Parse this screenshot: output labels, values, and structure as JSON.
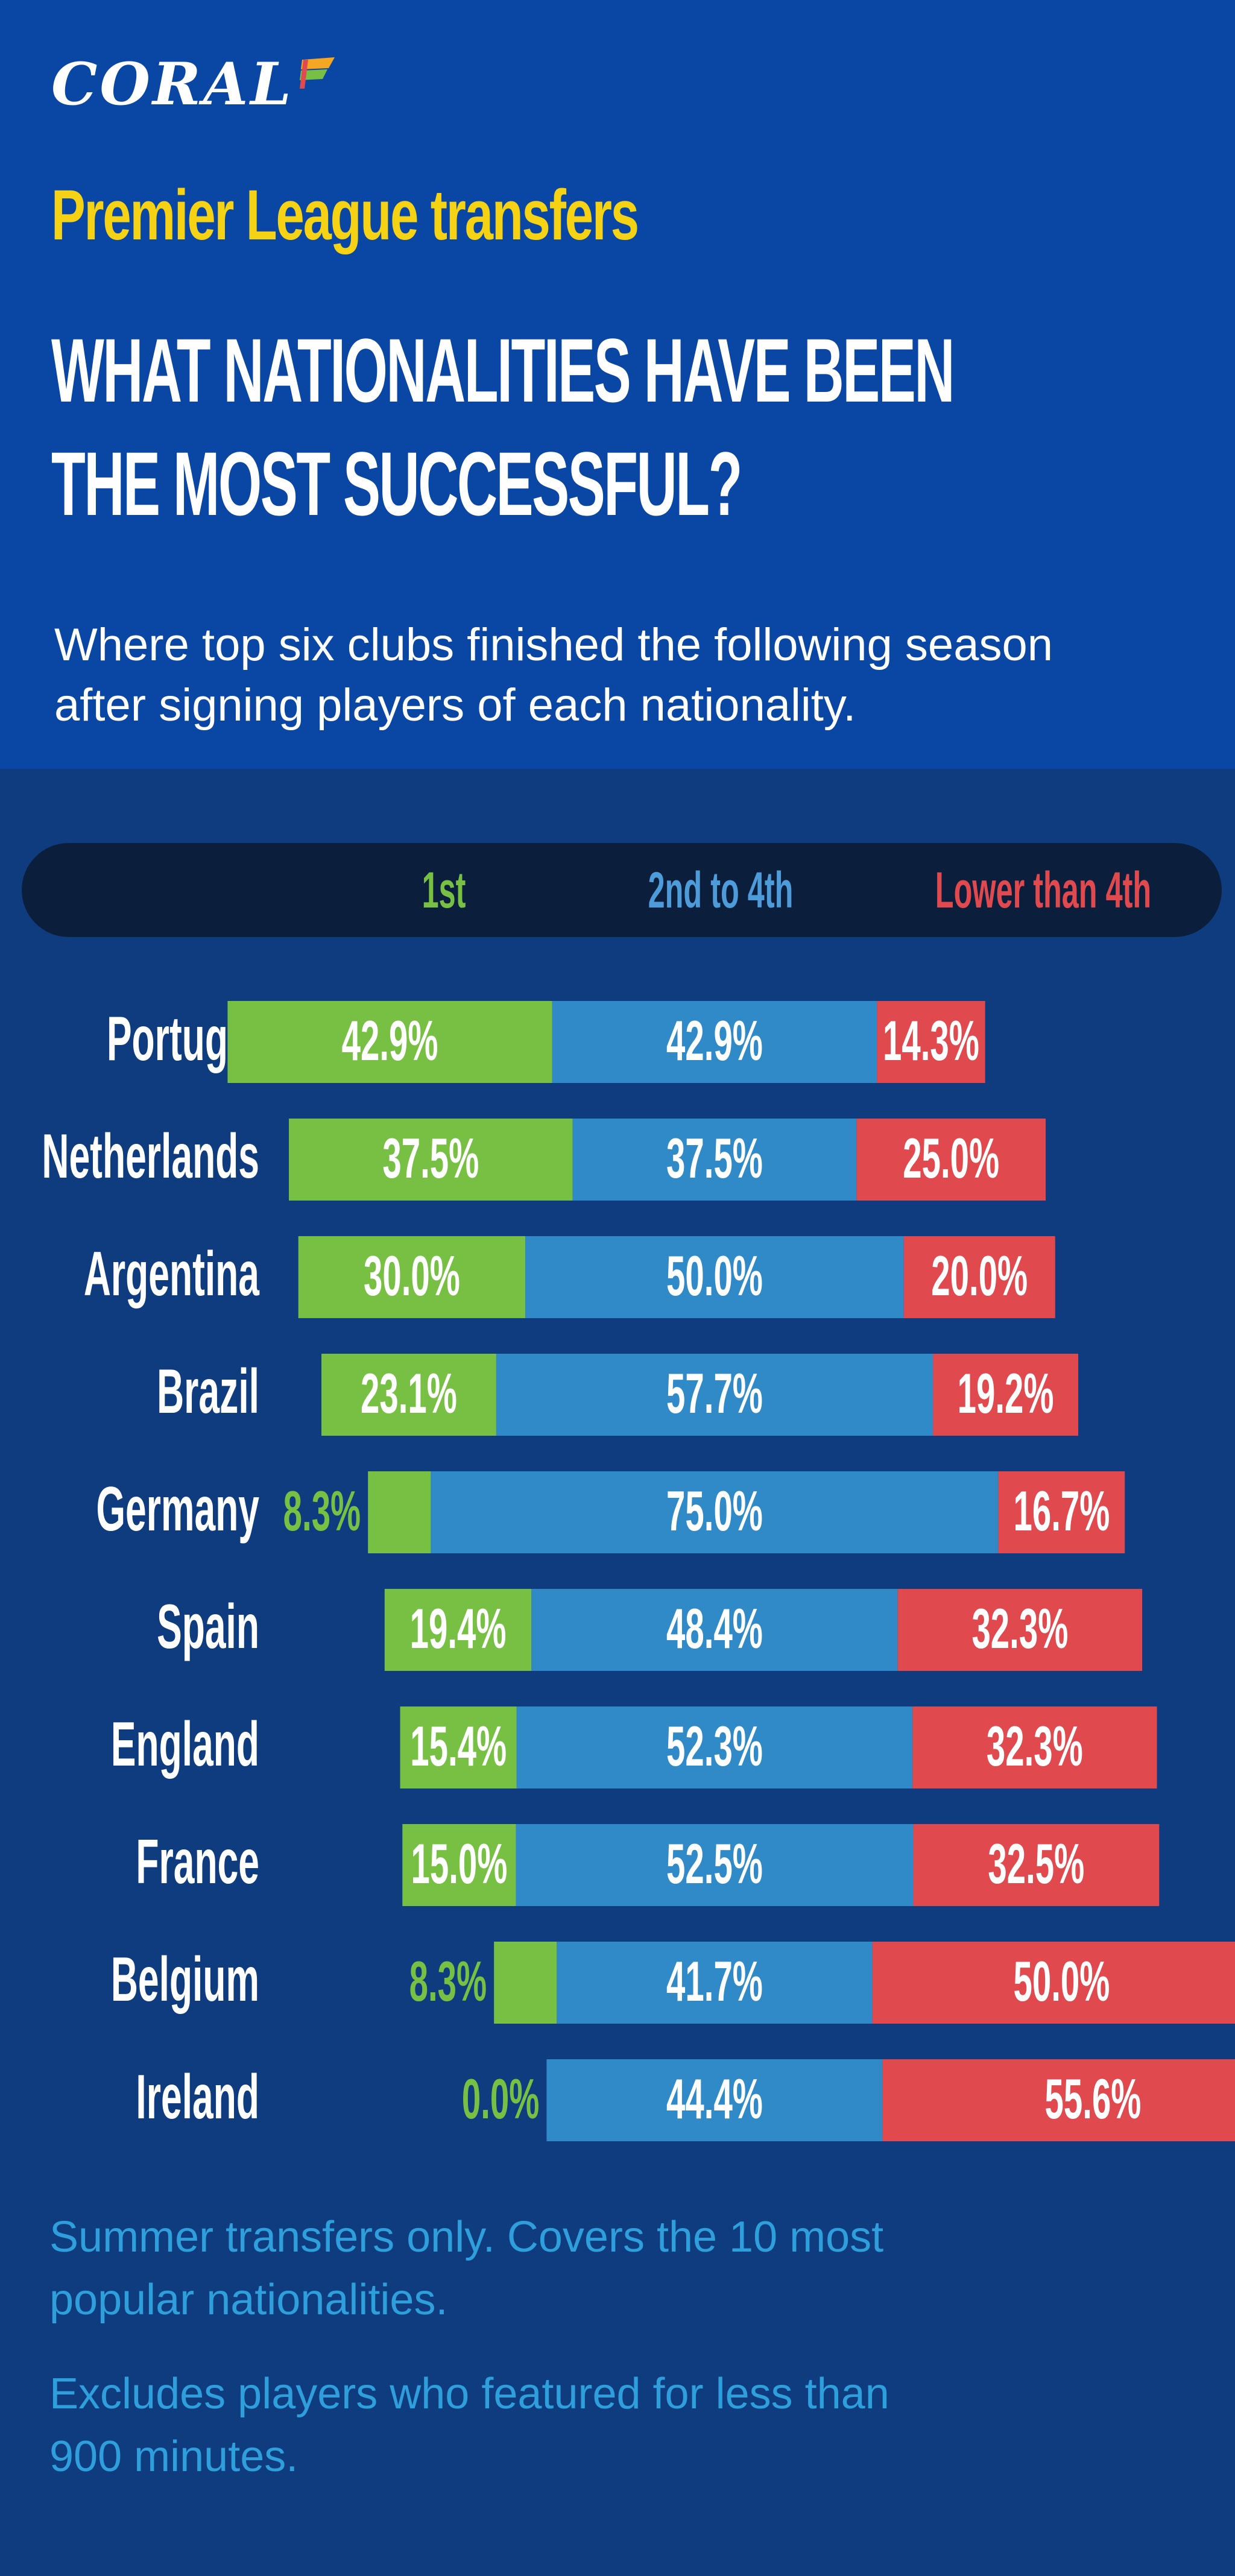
{
  "brand": {
    "logo_text": "CORAL"
  },
  "header": {
    "kicker": "Premier League transfers",
    "title_line1": "WHAT NATIONALITIES HAVE BEEN",
    "title_line2": "THE MOST SUCCESSFUL?",
    "subtitle_line1": "Where top six clubs finished the following season",
    "subtitle_line2": "after signing players of each nationality."
  },
  "legend": {
    "first": "1st",
    "mid": "2nd to 4th",
    "low": "Lower than 4th"
  },
  "colors": {
    "header_bg": "#0a47a4",
    "page_bg": "#0f3c7f",
    "legend_bg": "#0b1f3d",
    "first": "#78c044",
    "mid": "#2f8ac7",
    "low": "#e04a4f",
    "kicker": "#f5d214",
    "footnote": "#2f9fdc"
  },
  "chart_data": {
    "type": "bar",
    "orientation": "horizontal",
    "stacked": true,
    "categories": [
      "Portugal",
      "Netherlands",
      "Argentina",
      "Brazil",
      "Germany",
      "Spain",
      "England",
      "France",
      "Belgium",
      "Ireland"
    ],
    "series": [
      {
        "name": "1st",
        "values": [
          42.9,
          37.5,
          30.0,
          23.1,
          8.3,
          19.4,
          15.4,
          15.0,
          8.3,
          0.0
        ],
        "labels": [
          "42.9%",
          "37.5%",
          "30.0%",
          "23.1%",
          "8.3%",
          "19.4%",
          "15.4%",
          "15.0%",
          "8.3%",
          "0.0%"
        ]
      },
      {
        "name": "2nd to 4th",
        "values": [
          42.9,
          37.5,
          50.0,
          57.7,
          75.0,
          48.4,
          52.3,
          52.5,
          41.7,
          44.4
        ],
        "labels": [
          "42.9%",
          "37.5%",
          "50.0%",
          "57.7%",
          "75.0%",
          "48.4%",
          "52.3%",
          "52.5%",
          "41.7%",
          "44.4%"
        ]
      },
      {
        "name": "Lower than 4th",
        "values": [
          14.3,
          25.0,
          20.0,
          19.2,
          16.7,
          32.3,
          32.3,
          32.5,
          50.0,
          55.6
        ],
        "labels": [
          "14.3%",
          "25.0%",
          "20.0%",
          "19.2%",
          "16.7%",
          "32.3%",
          "32.3%",
          "32.5%",
          "50.0%",
          "55.6%"
        ]
      }
    ]
  },
  "footnotes": {
    "note1_line1": "Summer transfers only. Covers the 10 most",
    "note1_line2": "popular nationalities.",
    "note2_line1": "Excludes players who featured for less than",
    "note2_line2": "900 minutes."
  }
}
